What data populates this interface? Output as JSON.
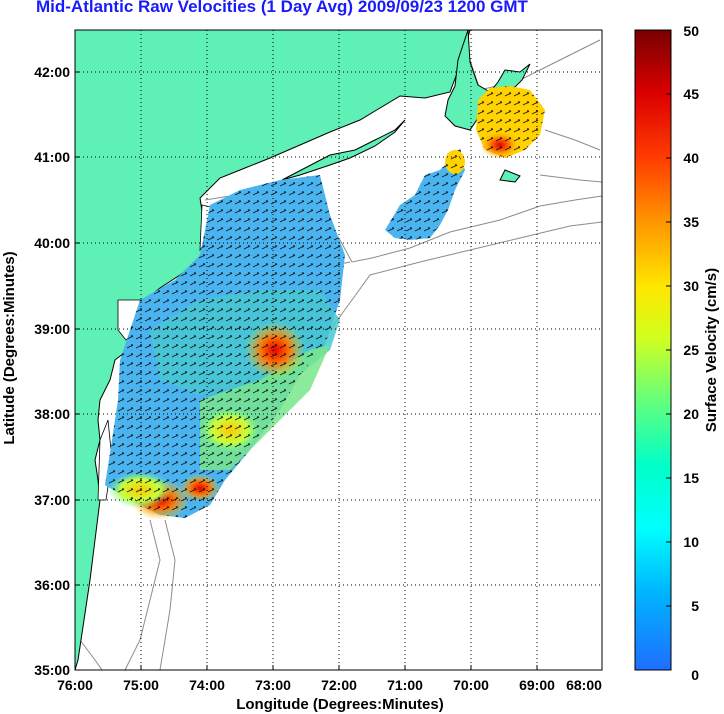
{
  "title": "Mid-Atlantic Raw Velocities (1 Day Avg) 2009/09/23 1200 GMT",
  "map": {
    "xlabel": "Longitude (Degrees:Minutes)",
    "ylabel": "Latitude (Degrees:Minutes)",
    "x_ticks": [
      "76:00",
      "75:00",
      "74:00",
      "73:00",
      "72:00",
      "71:00",
      "70:00",
      "69:00",
      "68:00"
    ],
    "y_ticks": [
      "42:00",
      "41:00",
      "40:00",
      "39:00",
      "38:00",
      "37:00",
      "36:00",
      "35:00"
    ],
    "lon_range": [
      -76,
      -68
    ],
    "lat_range": [
      35,
      42.5
    ],
    "grid": "dotted",
    "land_color": "#5ef0b4",
    "contour_color": "#8c8c8c"
  },
  "colorbar": {
    "label": "Surface Velocity (cm/s)",
    "ticks": [
      "50",
      "45",
      "40",
      "35",
      "30",
      "25",
      "20",
      "15",
      "10",
      "5",
      "0"
    ],
    "min": 0,
    "max": 50,
    "colors": [
      "#1e6eff",
      "#00c8ff",
      "#00ffd2",
      "#64ff7d",
      "#d2ff1e",
      "#ffd200",
      "#ff8200",
      "#ff2800",
      "#c80000",
      "#780000"
    ]
  }
}
